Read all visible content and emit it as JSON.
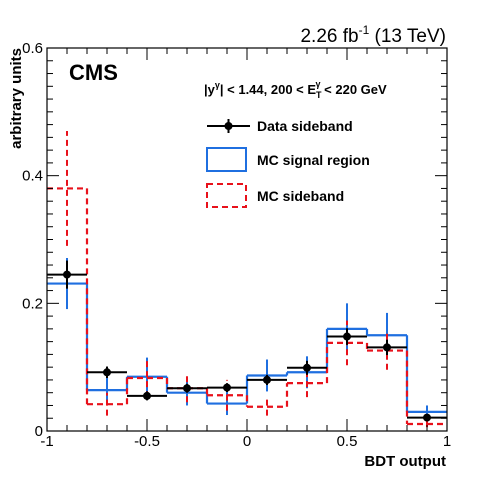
{
  "chart_data": {
    "type": "histogram",
    "lumi_label": {
      "sup": "-1",
      "text_before": "2.26 fb",
      "text_after": " (13 TeV)"
    },
    "experiment_label": "CMS",
    "selection_label": {
      "p1": "|y",
      "sup1": "γ",
      "p2": "| < 1.44, 200 < E",
      "sub2": "T",
      "sup2": "γ",
      "p3": " < 220 GeV"
    },
    "xlabel": "BDT output",
    "ylabel": "arbitrary units",
    "xlim": [
      -1,
      1
    ],
    "ylim": [
      0,
      0.6
    ],
    "x_ticks": [
      {
        "v": -1,
        "label": "-1"
      },
      {
        "v": -0.5,
        "label": "-0.5"
      },
      {
        "v": 0,
        "label": "0"
      },
      {
        "v": 0.5,
        "label": "0.5"
      },
      {
        "v": 1,
        "label": "1"
      }
    ],
    "y_ticks": [
      {
        "v": 0,
        "label": "0"
      },
      {
        "v": 0.2,
        "label": "0.2"
      },
      {
        "v": 0.4,
        "label": "0.4"
      },
      {
        "v": 0.6,
        "label": "0.6"
      }
    ],
    "bin_edges": [
      -1,
      -0.8,
      -0.6,
      -0.4,
      -0.2,
      0,
      0.2,
      0.4,
      0.6,
      0.8,
      1
    ],
    "series": [
      {
        "name": "Data sideband",
        "style": "points",
        "color": "#000000",
        "values": [
          0.245,
          0.092,
          0.055,
          0.067,
          0.068,
          0.08,
          0.099,
          0.148,
          0.131,
          0.021
        ],
        "errors": [
          0.022,
          0.009,
          0.007,
          0.007,
          0.007,
          0.008,
          0.011,
          0.013,
          0.012,
          0.005
        ]
      },
      {
        "name": "MC signal region",
        "style": "step",
        "color": "#1f6fe0",
        "values": [
          0.231,
          0.064,
          0.085,
          0.06,
          0.043,
          0.087,
          0.092,
          0.16,
          0.15,
          0.03
        ],
        "errors": [
          0.04,
          0.02,
          0.03,
          0.02,
          0.018,
          0.025,
          0.025,
          0.04,
          0.035,
          0.01
        ]
      },
      {
        "name": "MC sideband",
        "style": "dashed-step",
        "color": "#e8111b",
        "values": [
          0.38,
          0.042,
          0.083,
          0.067,
          0.056,
          0.038,
          0.075,
          0.138,
          0.126,
          0.011
        ],
        "errors": [
          0.09,
          0.018,
          0.03,
          0.022,
          0.024,
          0.014,
          0.022,
          0.035,
          0.03,
          0.005
        ]
      }
    ],
    "legend_position": "top-right"
  }
}
